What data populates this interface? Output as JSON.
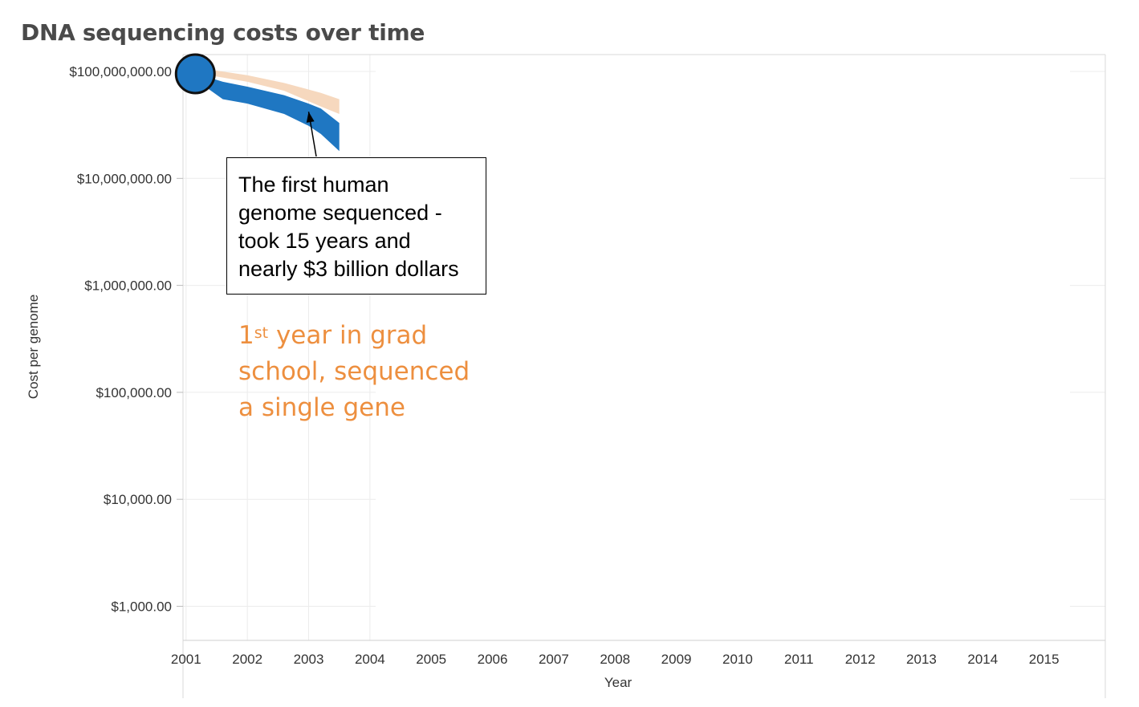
{
  "chart_data": {
    "type": "area",
    "title": "DNA sequencing costs over time",
    "xlabel": "Year",
    "ylabel": "Cost per genome",
    "x_ticks": [
      "2001",
      "2002",
      "2003",
      "2004",
      "2005",
      "2006",
      "2007",
      "2008",
      "2009",
      "2010",
      "2011",
      "2012",
      "2013",
      "2014",
      "2015"
    ],
    "y_ticks": [
      "$1,000.00",
      "$10,000.00",
      "$100,000.00",
      "$1,000,000.00",
      "$10,000,000.00",
      "$100,000,000.00"
    ],
    "y_tick_values": [
      1000,
      10000,
      100000,
      1000000,
      10000000,
      100000000
    ],
    "y_scale": "log",
    "xlim": [
      2000.95,
      2016
    ],
    "ylim": [
      500,
      150000000
    ],
    "grid": true,
    "series": [
      {
        "color": "#f6d8be",
        "x": [
          2001.1,
          2002.0,
          2002.6,
          2003.2,
          2003.5
        ],
        "upper": [
          110000000,
          92000000,
          78000000,
          63000000,
          55000000
        ],
        "lower": [
          98000000,
          80000000,
          66000000,
          47000000,
          40000000
        ]
      },
      {
        "color": "#1f77c2",
        "x": [
          2001.1,
          2001.6,
          2002.0,
          2002.6,
          2003.0,
          2003.2,
          2003.5
        ],
        "upper": [
          98000000,
          80000000,
          72000000,
          60000000,
          50000000,
          45000000,
          33000000
        ],
        "lower": [
          88000000,
          55000000,
          50000000,
          40000000,
          31000000,
          26000000,
          18000000
        ]
      }
    ],
    "highlight_point": {
      "x": 2001.15,
      "y": 95000000,
      "color": "#1f77c2"
    },
    "annotations": [
      {
        "lines": [
          "The first human",
          "genome sequenced -",
          "took 15 years and",
          "nearly $3 billion dollars"
        ],
        "arrow_to": {
          "x": 2003.0,
          "y": 42000000
        }
      },
      {
        "color": "#ed8f3f",
        "first_number": "1",
        "first_superscript": "st",
        "first_rest": " year in grad",
        "line2": "school, sequenced",
        "line3": "a single gene"
      }
    ]
  }
}
